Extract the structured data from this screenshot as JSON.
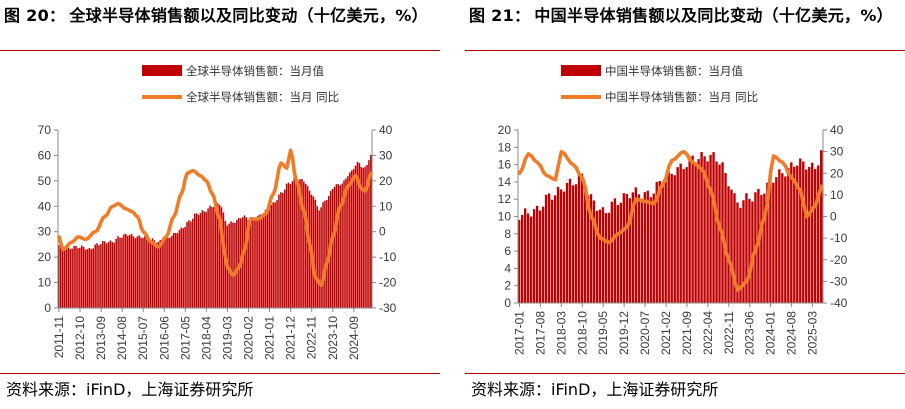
{
  "panels": [
    {
      "title_num": "图 20：",
      "title_text": "全球半导体销售额以及同比变动（十亿美元，%）",
      "source": "资料来源：iFinD，上海证券研究所"
    },
    {
      "title_num": "图 21：",
      "title_text": "中国半导体销售额以及同比变动（十亿美元，%）",
      "source": "资料来源：iFinD，上海证券研究所"
    }
  ],
  "colors": {
    "bar": "#c00000",
    "line": "#f07c2a",
    "rule": "#b30000"
  },
  "chart_data": [
    {
      "type": "bar+line",
      "title": "",
      "x_start": "2011-11",
      "x_end": "2025-06",
      "tick_labels": [
        "2011-11",
        "2012-10",
        "2013-09",
        "2014-08",
        "2015-07",
        "2016-06",
        "2017-05",
        "2018-04",
        "2019-03",
        "2020-02",
        "2021-01",
        "2021-12",
        "2022-11",
        "2023-10",
        "2024-09"
      ],
      "y_left": {
        "min": 0,
        "max": 70,
        "step": 10
      },
      "y_right": {
        "min": -30,
        "max": 40,
        "step": 10
      },
      "legend_position": "top-center",
      "series": [
        {
          "name": "全球半导体销售额：当月值",
          "kind": "bar",
          "axis": "left",
          "points": [
            [
              "2011-11",
              25
            ],
            [
              "2012-03",
              23
            ],
            [
              "2012-07",
              24
            ],
            [
              "2012-11",
              24
            ],
            [
              "2013-03",
              23
            ],
            [
              "2013-07",
              25
            ],
            [
              "2013-11",
              26
            ],
            [
              "2014-03",
              26
            ],
            [
              "2014-07",
              28
            ],
            [
              "2014-11",
              29
            ],
            [
              "2015-03",
              28
            ],
            [
              "2015-07",
              28
            ],
            [
              "2015-11",
              27
            ],
            [
              "2016-03",
              26
            ],
            [
              "2016-07",
              27
            ],
            [
              "2016-11",
              29
            ],
            [
              "2017-03",
              31
            ],
            [
              "2017-07",
              34
            ],
            [
              "2017-11",
              37
            ],
            [
              "2018-03",
              38
            ],
            [
              "2018-07",
              40
            ],
            [
              "2018-11",
              41
            ],
            [
              "2019-03",
              33
            ],
            [
              "2019-07",
              34
            ],
            [
              "2019-11",
              36
            ],
            [
              "2020-03",
              35
            ],
            [
              "2020-07",
              36
            ],
            [
              "2020-11",
              38
            ],
            [
              "2021-03",
              41
            ],
            [
              "2021-07",
              45
            ],
            [
              "2021-11",
              49
            ],
            [
              "2022-03",
              51
            ],
            [
              "2022-07",
              50
            ],
            [
              "2022-11",
              45
            ],
            [
              "2023-03",
              39
            ],
            [
              "2023-07",
              43
            ],
            [
              "2023-11",
              48
            ],
            [
              "2024-03",
              49
            ],
            [
              "2024-07",
              53
            ],
            [
              "2024-11",
              57
            ],
            [
              "2025-03",
              55
            ],
            [
              "2025-06",
              60
            ]
          ]
        },
        {
          "name": "全球半导体销售额：当月 同比",
          "kind": "line",
          "axis": "right",
          "points": [
            [
              "2011-11",
              -2
            ],
            [
              "2012-01",
              -7
            ],
            [
              "2012-06",
              -4
            ],
            [
              "2012-09",
              -2
            ],
            [
              "2013-01",
              -3
            ],
            [
              "2013-06",
              0
            ],
            [
              "2013-11",
              6
            ],
            [
              "2014-03",
              10
            ],
            [
              "2014-06",
              11
            ],
            [
              "2014-10",
              9
            ],
            [
              "2015-01",
              8
            ],
            [
              "2015-04",
              6
            ],
            [
              "2015-07",
              0
            ],
            [
              "2015-11",
              -4
            ],
            [
              "2016-03",
              -6
            ],
            [
              "2016-07",
              -2
            ],
            [
              "2016-11",
              6
            ],
            [
              "2017-03",
              15
            ],
            [
              "2017-06",
              23
            ],
            [
              "2017-09",
              24
            ],
            [
              "2018-01",
              22
            ],
            [
              "2018-04",
              20
            ],
            [
              "2018-07",
              15
            ],
            [
              "2018-11",
              5
            ],
            [
              "2019-01",
              -6
            ],
            [
              "2019-03",
              -14
            ],
            [
              "2019-06",
              -17
            ],
            [
              "2019-09",
              -14
            ],
            [
              "2019-12",
              -7
            ],
            [
              "2020-03",
              5
            ],
            [
              "2020-07",
              5
            ],
            [
              "2020-11",
              7
            ],
            [
              "2021-03",
              15
            ],
            [
              "2021-07",
              27
            ],
            [
              "2021-10",
              25
            ],
            [
              "2021-12",
              32
            ],
            [
              "2022-03",
              20
            ],
            [
              "2022-07",
              8
            ],
            [
              "2022-10",
              -5
            ],
            [
              "2023-01",
              -18
            ],
            [
              "2023-04",
              -21
            ],
            [
              "2023-07",
              -12
            ],
            [
              "2023-10",
              -2
            ],
            [
              "2024-02",
              10
            ],
            [
              "2024-06",
              18
            ],
            [
              "2024-10",
              22
            ],
            [
              "2025-01",
              17
            ],
            [
              "2025-03",
              16
            ],
            [
              "2025-06",
              23
            ]
          ]
        }
      ]
    },
    {
      "type": "bar+line",
      "title": "",
      "x_start": "2017-01",
      "x_end": "2025-06",
      "tick_labels": [
        "2017-01",
        "2017-08",
        "2018-03",
        "2018-10",
        "2019-05",
        "2019-12",
        "2020-07",
        "2021-02",
        "2021-09",
        "2022-04",
        "2022-11",
        "2023-06",
        "2024-01",
        "2024-08",
        "2025-03"
      ],
      "y_left": {
        "min": 0,
        "max": 20,
        "step": 2
      },
      "y_right": {
        "min": -40,
        "max": 40,
        "step": 10
      },
      "legend_position": "top-center",
      "series": [
        {
          "name": "中国半导体销售额：当月值",
          "kind": "bar",
          "axis": "left",
          "points": [
            [
              "2017-01",
              10.2
            ],
            [
              "2017-06",
              10.6
            ],
            [
              "2017-12",
              12.5
            ],
            [
              "2018-06",
              13.8
            ],
            [
              "2018-10",
              14.6
            ],
            [
              "2019-01",
              12.0
            ],
            [
              "2019-05",
              10.5
            ],
            [
              "2019-10",
              11.8
            ],
            [
              "2020-03",
              12.8
            ],
            [
              "2020-08",
              12.5
            ],
            [
              "2021-01",
              14.0
            ],
            [
              "2021-06",
              15.5
            ],
            [
              "2021-12",
              16.8
            ],
            [
              "2022-05",
              17.0
            ],
            [
              "2022-08",
              16.5
            ],
            [
              "2022-11",
              14.0
            ],
            [
              "2023-02",
              11.5
            ],
            [
              "2023-06",
              12.2
            ],
            [
              "2023-11",
              13.0
            ],
            [
              "2024-02",
              14.5
            ],
            [
              "2024-06",
              15.2
            ],
            [
              "2024-10",
              16.3
            ],
            [
              "2025-01",
              16.0
            ],
            [
              "2025-04",
              15.5
            ],
            [
              "2025-06",
              17.5
            ]
          ]
        },
        {
          "name": "中国半导体销售额：当月 同比",
          "kind": "line",
          "axis": "right",
          "points": [
            [
              "2017-01",
              20
            ],
            [
              "2017-04",
              29
            ],
            [
              "2017-07",
              25
            ],
            [
              "2017-10",
              19
            ],
            [
              "2018-01",
              17
            ],
            [
              "2018-03",
              30
            ],
            [
              "2018-07",
              24
            ],
            [
              "2018-10",
              18
            ],
            [
              "2019-01",
              0
            ],
            [
              "2019-04",
              -10
            ],
            [
              "2019-07",
              -12
            ],
            [
              "2019-10",
              -8
            ],
            [
              "2020-01",
              -5
            ],
            [
              "2020-04",
              8
            ],
            [
              "2020-07",
              7
            ],
            [
              "2020-10",
              6
            ],
            [
              "2021-01",
              15
            ],
            [
              "2021-04",
              26
            ],
            [
              "2021-08",
              30
            ],
            [
              "2021-11",
              25
            ],
            [
              "2022-02",
              22
            ],
            [
              "2022-05",
              12
            ],
            [
              "2022-08",
              -5
            ],
            [
              "2022-11",
              -20
            ],
            [
              "2023-02",
              -34
            ],
            [
              "2023-05",
              -30
            ],
            [
              "2023-08",
              -15
            ],
            [
              "2023-11",
              0
            ],
            [
              "2024-02",
              28
            ],
            [
              "2024-05",
              25
            ],
            [
              "2024-08",
              18
            ],
            [
              "2024-11",
              12
            ],
            [
              "2025-01",
              0
            ],
            [
              "2025-04",
              5
            ],
            [
              "2025-06",
              14
            ]
          ]
        }
      ]
    }
  ]
}
